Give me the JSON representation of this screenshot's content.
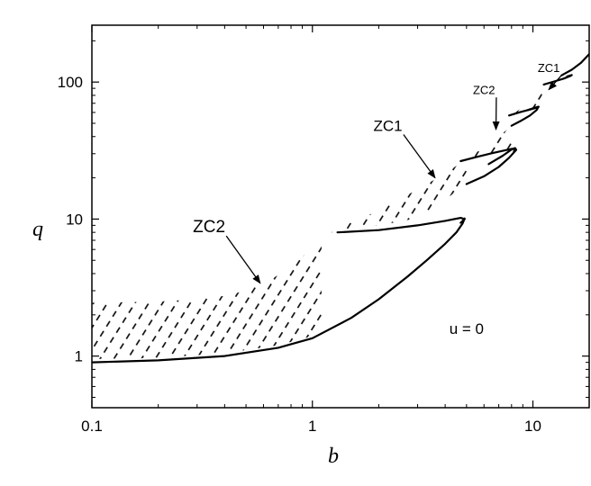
{
  "chart_data": {
    "type": "line",
    "title": "",
    "xlabel": "b",
    "ylabel": "q",
    "x_scale": "log",
    "y_scale": "log",
    "xlim": [
      0.1,
      18
    ],
    "ylim": [
      0.42,
      260
    ],
    "x_ticks": [
      0.1,
      1,
      10
    ],
    "x_tick_labels": [
      "0.1",
      "1",
      "10"
    ],
    "y_ticks": [
      1,
      10,
      100
    ],
    "y_tick_labels": [
      "1",
      "10",
      "100"
    ],
    "grid": false,
    "legend": "none",
    "hatch_color": "#000000",
    "line_color": "#000000",
    "curves": [
      {
        "x": [
          0.1,
          0.2,
          0.4,
          0.7,
          1.0,
          1.5,
          2.0,
          2.7,
          3.3,
          4.0,
          4.5,
          4.8,
          4.9
        ],
        "y": [
          0.9,
          0.93,
          1.0,
          1.15,
          1.35,
          1.9,
          2.6,
          3.8,
          5.0,
          6.6,
          8.0,
          9.3,
          10.1
        ]
      },
      {
        "x": [
          1.3,
          2.0,
          3.0,
          4.0,
          4.7,
          4.9,
          4.7
        ],
        "y": [
          8.0,
          8.3,
          9.0,
          9.7,
          10.2,
          10.0,
          9.4
        ]
      },
      {
        "x": [
          5.0,
          6.0,
          7.0,
          7.8,
          8.4,
          8.3,
          8.0,
          7.3,
          6.3
        ],
        "y": [
          18.0,
          20.5,
          24.0,
          28.0,
          32.0,
          33.0,
          32.2,
          29.0,
          25.2
        ]
      },
      {
        "x": [
          4.7,
          5.6,
          6.5,
          7.5,
          8.0,
          8.3,
          8.2
        ],
        "y": [
          26.5,
          28.5,
          30.2,
          31.8,
          32.5,
          32.8,
          31.0
        ]
      },
      {
        "x": [
          8.0,
          8.8,
          9.7,
          10.4,
          10.6,
          10.2,
          9.5
        ],
        "y": [
          48.0,
          52.0,
          57.0,
          62.5,
          66.0,
          65.0,
          62.5
        ]
      },
      {
        "x": [
          7.8,
          8.8,
          9.7,
          10.4,
          10.6
        ],
        "y": [
          57.0,
          60.5,
          63.0,
          65.0,
          66.0
        ]
      },
      {
        "x": [
          11.2,
          12.5,
          13.8,
          14.8,
          15.0,
          14.3
        ],
        "y": [
          96.0,
          101.0,
          106.0,
          111.0,
          112.5,
          110.0
        ]
      },
      {
        "x": [
          13.5,
          15.0,
          16.5,
          18.0
        ],
        "y": [
          112.0,
          123.0,
          138.0,
          160.0
        ]
      }
    ],
    "hatched_regions": [
      {
        "upper": {
          "x": [
            0.1,
            0.2,
            0.3,
            0.4,
            0.5,
            0.6,
            0.7,
            0.8,
            0.9,
            1.0,
            1.1
          ],
          "y": [
            2.45,
            2.5,
            2.6,
            2.75,
            3.0,
            3.4,
            3.9,
            4.5,
            5.3,
            6.3,
            7.2
          ]
        },
        "lower": {
          "x": [
            0.1,
            0.2,
            0.4,
            0.7,
            1.0,
            1.1
          ],
          "y": [
            0.95,
            0.97,
            1.05,
            1.2,
            1.4,
            1.5
          ]
        }
      },
      {
        "upper": {
          "x": [
            1.1,
            1.5,
            2.0,
            2.5,
            3.0,
            3.5,
            4.0,
            4.5,
            5.0
          ],
          "y": [
            7.2,
            9.5,
            11.5,
            14.0,
            16.5,
            19.0,
            21.5,
            24.5,
            26.5
          ]
        },
        "lower": {
          "x": [
            1.1,
            1.5,
            2.0,
            2.5,
            3.0,
            3.5,
            4.0,
            4.5,
            5.0
          ],
          "y": [
            7.8,
            8.5,
            9.0,
            9.6,
            10.2,
            11.8,
            13.8,
            16.0,
            18.0
          ]
        }
      },
      {
        "upper": {
          "x": [
            5.0,
            6.0,
            7.0,
            8.0
          ],
          "y": [
            28.0,
            33.0,
            40.0,
            48.0
          ]
        },
        "lower": {
          "x": [
            5.0,
            6.0,
            7.0,
            8.0
          ],
          "y": [
            26.5,
            28.5,
            30.0,
            31.5
          ]
        }
      },
      {
        "upper": {
          "x": [
            8.0,
            9.0,
            10.0,
            11.0
          ],
          "y": [
            57.0,
            66.0,
            78.0,
            92.0
          ]
        },
        "lower": {
          "x": [
            8.0,
            9.0,
            10.0,
            11.0
          ],
          "y": [
            57.0,
            61.0,
            63.5,
            64.5
          ]
        }
      }
    ],
    "annotations": [
      {
        "text": "ZC1",
        "x": 11.8,
        "y": 118,
        "arrow_to": [
          11.8,
          88
        ],
        "size": "small"
      },
      {
        "text": "ZC2",
        "x": 6.0,
        "y": 82,
        "arrow_to": [
          6.8,
          45
        ],
        "size": "small"
      },
      {
        "text": "ZC1",
        "x": 2.2,
        "y": 44,
        "arrow_to": [
          3.6,
          20
        ],
        "size": "medium"
      },
      {
        "text": "ZC2",
        "x": 0.34,
        "y": 8.0,
        "arrow_to": [
          0.58,
          3.4
        ],
        "size": "large"
      },
      {
        "text": "u = 0",
        "x": 5.0,
        "y": 1.45,
        "size": "medium"
      }
    ]
  }
}
